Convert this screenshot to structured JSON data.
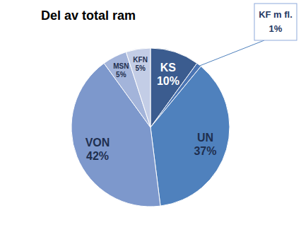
{
  "chart_data": {
    "type": "pie",
    "title": "Del av total ram",
    "categories": [
      "KS",
      "KF m fl.",
      "UN",
      "VON",
      "MSN",
      "KFN"
    ],
    "values": [
      10,
      1,
      37,
      42,
      5,
      5
    ],
    "value_labels": [
      "10%",
      "1%",
      "37%",
      "42%",
      "5%",
      "5%"
    ],
    "colors": [
      "#3b5c8f",
      "#4a74b3",
      "#4f81bd",
      "#7d98cc",
      "#a3b4da",
      "#c3cde6"
    ],
    "data_labels": true
  }
}
